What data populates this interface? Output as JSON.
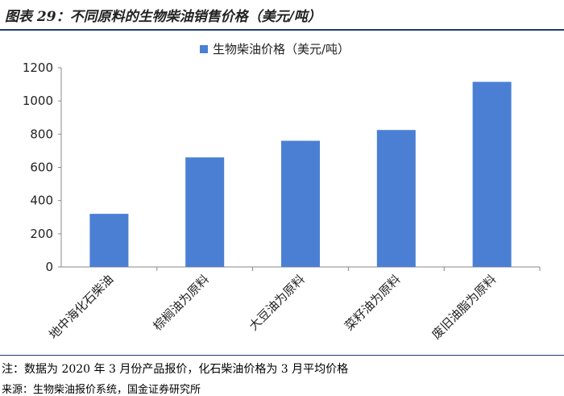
{
  "figure": {
    "title": "图表 29：不同原料的生物柴油销售价格（美元/吨）",
    "note": "注：数据为 2020 年 3 月份产品报价，化石柴油价格为 3 月平均价格",
    "source": "来源：生物柴油报价系统，国金证券研究所"
  },
  "chart_data": {
    "type": "bar",
    "categories": [
      "地中海化石柴油",
      "棕榈油为原料",
      "大豆油为原料",
      "菜籽油为原料",
      "废旧油脂为原料"
    ],
    "series": [
      {
        "name": "生物柴油价格（美元/吨）",
        "values": [
          320,
          660,
          760,
          825,
          1115
        ],
        "color": "#4a7fd4"
      }
    ],
    "ylim": [
      0,
      1200
    ],
    "yticks": [
      0,
      200,
      400,
      600,
      800,
      1000,
      1200
    ],
    "legend": "top-center",
    "grid": false
  }
}
